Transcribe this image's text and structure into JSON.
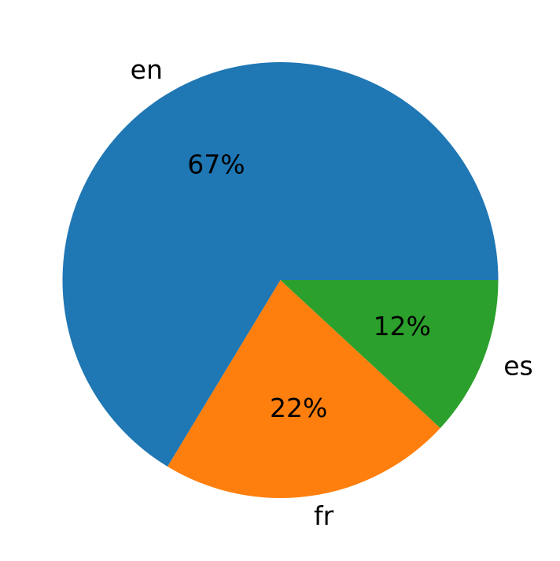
{
  "chart_data": {
    "type": "pie",
    "title": "",
    "start_angle_deg": 0,
    "direction": "counterclockwise",
    "categories": [
      "en",
      "fr",
      "es"
    ],
    "values": [
      67,
      22,
      12
    ],
    "percent_labels": [
      "67%",
      "22%",
      "12%"
    ],
    "colors": [
      "#1f77b4",
      "#ff7f0e",
      "#2ca02c"
    ],
    "legend": "none"
  }
}
